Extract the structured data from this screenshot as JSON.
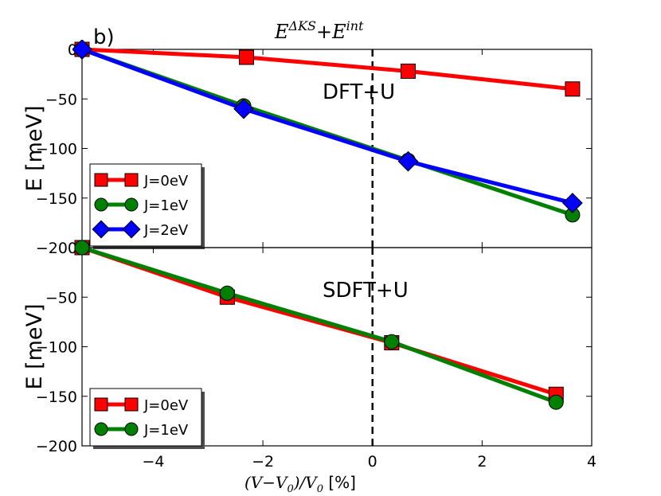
{
  "panel_label": "b)",
  "top_title": {
    "base1": "E",
    "sup1": "ΔKS",
    "plus": "+",
    "base2": "E",
    "sup2": "int"
  },
  "xlabel": {
    "math": "(V−V",
    "sub": "0",
    "rest": ")/V",
    "sub2": "0",
    "unit": " [%]"
  },
  "chart_data": [
    {
      "type": "line",
      "panel": "top",
      "annotation": "DFT+U",
      "ylabel": "E [meV]",
      "xlim": [
        -5.3,
        4.0
      ],
      "ylim": [
        -200,
        0
      ],
      "xticks": [
        -4,
        -2,
        0,
        2,
        4
      ],
      "yticks": [
        0,
        -50,
        -100,
        -150,
        -200
      ],
      "series": [
        {
          "name": "J=0eV",
          "color": "#ff0000",
          "marker": "square",
          "x": [
            -5.3,
            -2.3,
            0.65,
            3.65
          ],
          "y": [
            0,
            -8,
            -22,
            -40
          ]
        },
        {
          "name": "J=1eV",
          "color": "#008000",
          "marker": "circle",
          "x": [
            -5.3,
            -2.35,
            0.65,
            3.65
          ],
          "y": [
            0,
            -57,
            -112,
            -167
          ]
        },
        {
          "name": "J=2eV",
          "color": "#0000ff",
          "marker": "diamond",
          "x": [
            -5.3,
            -2.35,
            0.65,
            3.65
          ],
          "y": [
            0,
            -60,
            -113,
            -155
          ]
        }
      ],
      "vline": 0,
      "legend": "bottom-left"
    },
    {
      "type": "line",
      "panel": "bottom",
      "annotation": "SDFT+U",
      "ylabel": "E [meV]",
      "xlim": [
        -5.3,
        4.0
      ],
      "ylim": [
        -200,
        0
      ],
      "xticks": [
        -4,
        -2,
        0,
        2,
        4
      ],
      "yticks": [
        -50,
        -100,
        -150,
        -200
      ],
      "series": [
        {
          "name": "J=0eV",
          "color": "#ff0000",
          "marker": "square",
          "x": [
            -5.3,
            -2.65,
            0.35,
            3.35
          ],
          "y": [
            0,
            -50,
            -96,
            -148
          ]
        },
        {
          "name": "J=1eV",
          "color": "#008000",
          "marker": "circle",
          "x": [
            -5.3,
            -2.65,
            0.35,
            3.35
          ],
          "y": [
            0,
            -46,
            -95,
            -156
          ]
        }
      ],
      "vline": 0,
      "legend": "bottom-left"
    }
  ]
}
